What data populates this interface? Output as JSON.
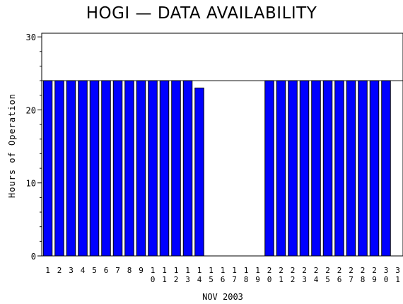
{
  "chart_data": {
    "type": "bar",
    "title": "HOGI — DATA AVAILABILITY",
    "xlabel": "NOV 2003",
    "ylabel": "Hours of Operation",
    "ylim": [
      0,
      30.5
    ],
    "yticks": [
      0,
      10,
      20,
      30
    ],
    "reference_line": 24,
    "grid": false,
    "bar_color": "#0000ff",
    "categories": [
      "1",
      "2",
      "3",
      "4",
      "5",
      "6",
      "7",
      "8",
      "9",
      "10",
      "11",
      "12",
      "13",
      "14",
      "15",
      "16",
      "17",
      "18",
      "19",
      "20",
      "21",
      "22",
      "23",
      "24",
      "25",
      "26",
      "27",
      "28",
      "29",
      "30",
      "31"
    ],
    "values": [
      24,
      24,
      24,
      24,
      24,
      24,
      24,
      24,
      24,
      24,
      24,
      24,
      24,
      23,
      0,
      0,
      0,
      0,
      0,
      24,
      24,
      24,
      24,
      24,
      24,
      24,
      24,
      24,
      24,
      24,
      0
    ]
  }
}
